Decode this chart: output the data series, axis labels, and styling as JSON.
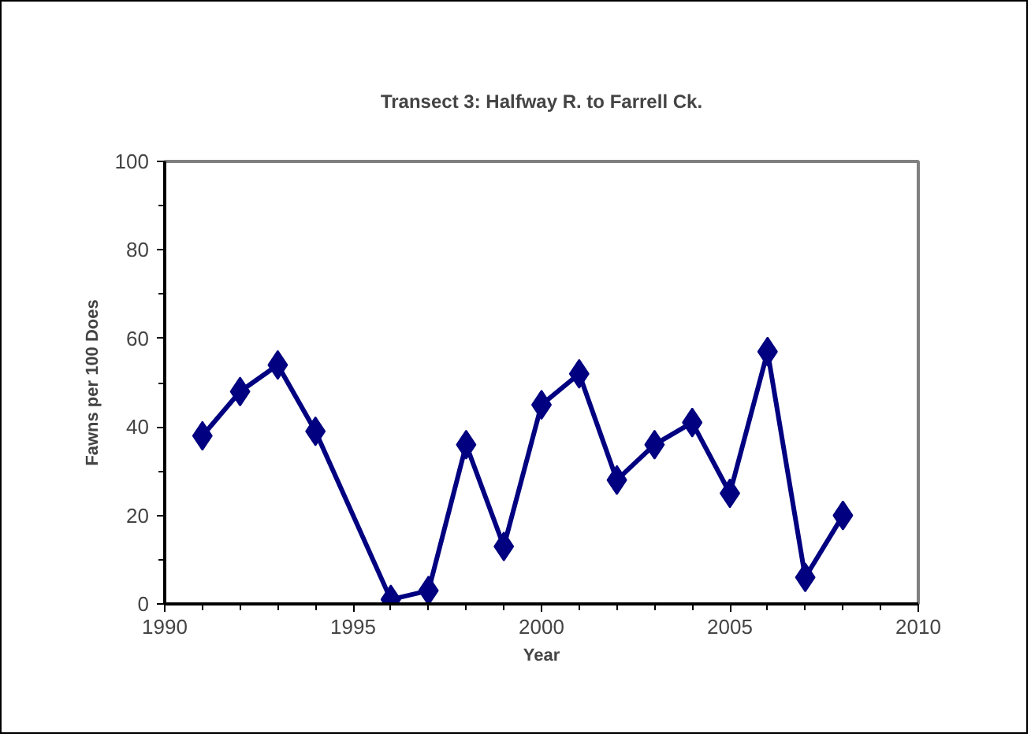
{
  "chart_data": {
    "type": "line",
    "title": "Transect 3: Halfway R. to Farrell Ck.",
    "xlabel": "Year",
    "ylabel": "Fawns per 100 Does",
    "x": [
      1991,
      1992,
      1993,
      1994,
      1996,
      1997,
      1998,
      1999,
      2000,
      2001,
      2002,
      2003,
      2004,
      2005,
      2006,
      2007,
      2008
    ],
    "series": [
      {
        "color": "#000080",
        "values": [
          38,
          48,
          54,
          39,
          1,
          3,
          36,
          13,
          45,
          52,
          28,
          36,
          41,
          25,
          57,
          6,
          20
        ]
      }
    ],
    "xlim": [
      1990,
      2010
    ],
    "xticks": [
      1990,
      1995,
      2000,
      2005,
      2010
    ],
    "ylim": [
      0,
      100
    ],
    "yticks": [
      0,
      20,
      40,
      60,
      80,
      100
    ],
    "marker": "diamond",
    "line_style": "solid"
  }
}
